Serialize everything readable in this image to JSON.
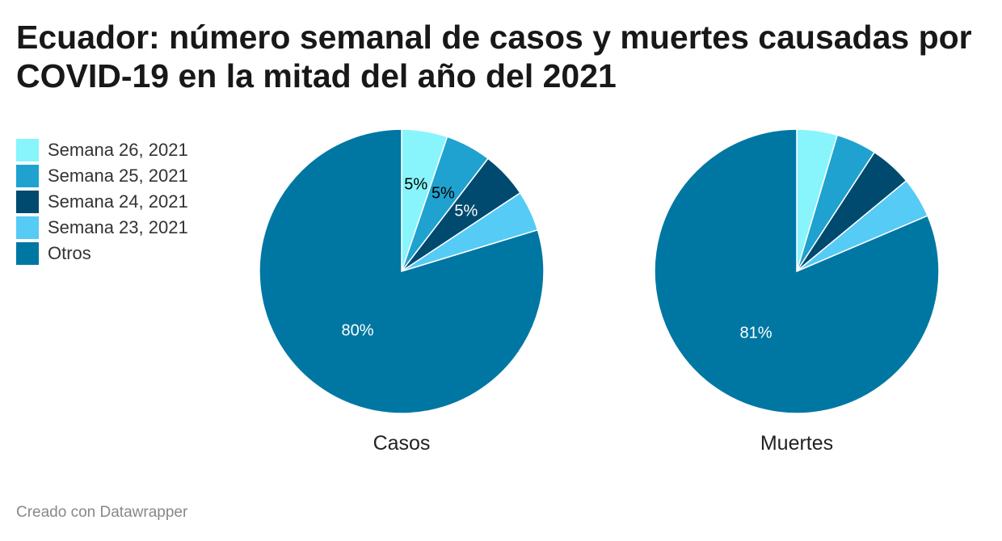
{
  "header": {
    "title": "Ecuador: número semanal de casos y muertes causadas por COVID-19 en la mitad del año del 2021"
  },
  "footer": {
    "credit": "Creado con Datawrapper"
  },
  "chart_data": {
    "type": "pie",
    "title": "Ecuador: número semanal de casos y muertes causadas por COVID-19 en la mitad del año del 2021",
    "legend_position": "top-left",
    "categories": [
      "Semana 26, 2021",
      "Semana 25, 2021",
      "Semana 24, 2021",
      "Semana 23, 2021",
      "Otros"
    ],
    "colors": [
      "#87f5fb",
      "#1fa2cf",
      "#004a6f",
      "#55cbf5",
      "#0077a3"
    ],
    "series": [
      {
        "name": "Casos",
        "values": [
          5.2,
          5.2,
          5.3,
          4.6,
          79.7
        ],
        "labels": [
          "5%",
          "5%",
          "5%",
          "",
          "80%"
        ]
      },
      {
        "name": "Muertes",
        "values": [
          4.6,
          4.6,
          4.8,
          4.6,
          81.4
        ],
        "labels": [
          "",
          "",
          "",
          "",
          "81%"
        ]
      }
    ]
  }
}
